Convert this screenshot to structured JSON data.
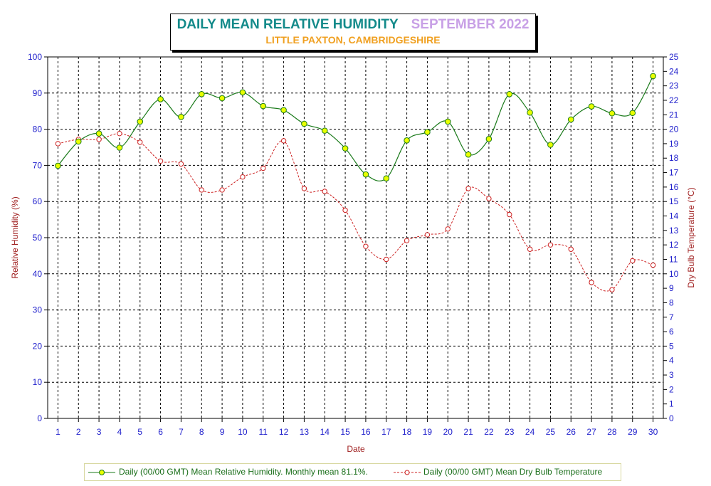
{
  "title": {
    "main": "DAILY MEAN RELATIVE HUMIDITY",
    "period": "SEPTEMBER 2022",
    "location": "LITTLE PAXTON, CAMBRIDGESHIRE"
  },
  "colors": {
    "rh_line": "#1a7a1a",
    "rh_marker": "#e8ff00",
    "temp_line": "#cc2020",
    "left_axis_text": "#2020cc",
    "right_axis_text": "#2020cc",
    "axis_title": "#a02020",
    "grid": "#000000"
  },
  "chart_data": {
    "type": "line",
    "title": "DAILY MEAN RELATIVE HUMIDITY   SEPTEMBER 2022",
    "subtitle": "LITTLE PAXTON, CAMBRIDGESHIRE",
    "xlabel": "Date",
    "ylabel": "Relative Humidity (%)",
    "y2label": "Dry Bulb Temperature (°C)",
    "x": [
      1,
      2,
      3,
      4,
      5,
      6,
      7,
      8,
      9,
      10,
      11,
      12,
      13,
      14,
      15,
      16,
      17,
      18,
      19,
      20,
      21,
      22,
      23,
      24,
      25,
      26,
      27,
      28,
      29,
      30
    ],
    "ylim": [
      0,
      100
    ],
    "y_ticks": [
      0,
      10,
      20,
      30,
      40,
      50,
      60,
      70,
      80,
      90,
      100
    ],
    "y2lim": [
      0,
      25
    ],
    "y2_ticks": [
      0,
      1,
      2,
      3,
      4,
      5,
      6,
      7,
      8,
      9,
      10,
      11,
      12,
      13,
      14,
      15,
      16,
      17,
      18,
      19,
      20,
      21,
      22,
      23,
      24,
      25
    ],
    "grid": true,
    "legend_position": "bottom",
    "series": [
      {
        "name": "Daily (00/00 GMT) Mean Relative Humidity. Monthly mean 81.1%.",
        "axis": "left",
        "values": [
          69.9,
          76.6,
          78.8,
          74.9,
          82.1,
          88.3,
          83.4,
          89.7,
          88.6,
          90.2,
          86.4,
          85.3,
          81.5,
          79.6,
          74.7,
          67.5,
          66.4,
          76.9,
          79.2,
          82.1,
          73.0,
          77.3,
          89.7,
          84.6,
          75.7,
          82.7,
          86.3,
          84.4,
          84.5,
          94.7
        ]
      },
      {
        "name": "Daily (00/00 GMT) Mean Dry Bulb Temperature",
        "axis": "right",
        "values": [
          19.0,
          19.3,
          19.3,
          19.7,
          19.1,
          17.8,
          17.6,
          15.8,
          15.8,
          16.7,
          17.3,
          19.2,
          15.9,
          15.7,
          14.4,
          11.9,
          11.0,
          12.3,
          12.7,
          13.1,
          15.9,
          15.2,
          14.1,
          11.7,
          12.0,
          11.7,
          9.4,
          8.9,
          10.9,
          10.6
        ]
      }
    ]
  }
}
